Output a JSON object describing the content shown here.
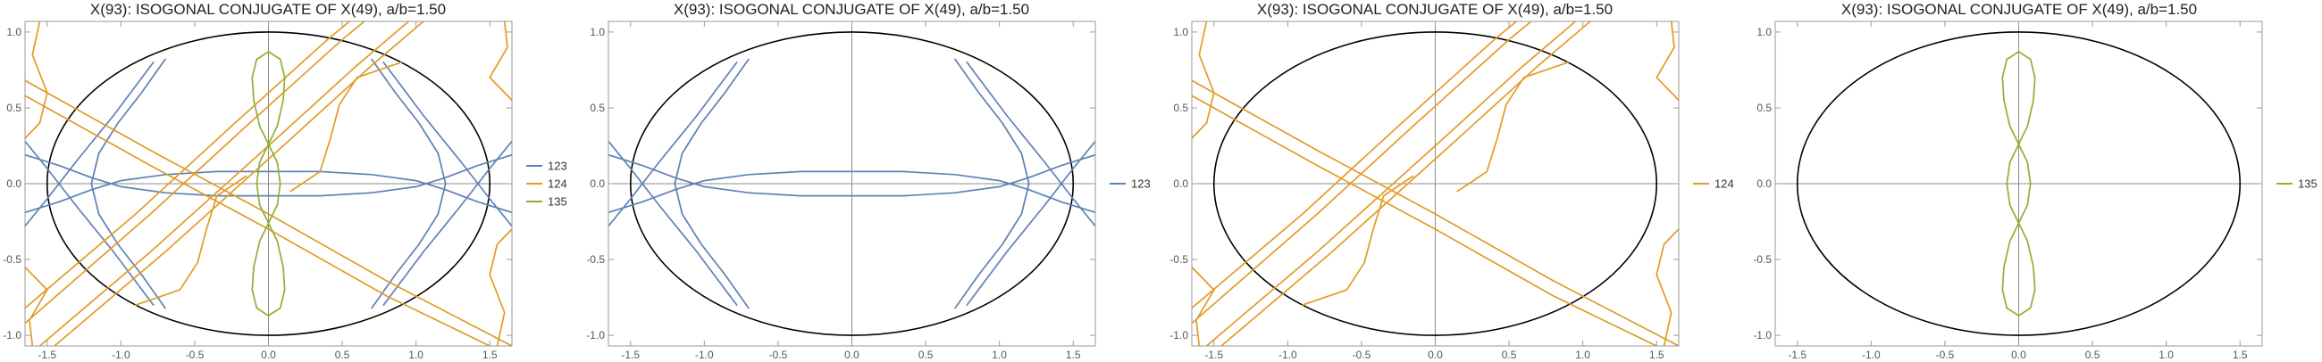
{
  "colors": {
    "ellipse": "#000000",
    "frame": "#9a9a9a",
    "axis": "#8c8c8c",
    "s123": "#5e81b5",
    "s124": "#e19c24",
    "s135": "#8fb032"
  },
  "chart_data": [
    {
      "type": "line",
      "title": "X(93): ISOGONAL CONJUGATE OF X(49), a/b=1.50",
      "xlim": [
        -1.65,
        1.65
      ],
      "ylim": [
        -1.07,
        1.07
      ],
      "xticks": [
        "-1.5",
        "-1.0",
        "-0.5",
        "0.0",
        "0.5",
        "1.0",
        "1.5"
      ],
      "yticks": [
        "-1.0",
        "-0.5",
        "0.0",
        "0.5",
        "1.0"
      ],
      "ellipse": {
        "a": 1.5,
        "b": 1.0
      },
      "legend": [
        "123",
        "124",
        "135"
      ],
      "series": [
        "123",
        "124",
        "135"
      ]
    },
    {
      "type": "line",
      "title": "X(93): ISOGONAL CONJUGATE OF X(49), a/b=1.50",
      "xlim": [
        -1.65,
        1.65
      ],
      "ylim": [
        -1.07,
        1.07
      ],
      "xticks": [
        "-1.5",
        "-1.0",
        "-0.5",
        "0.0",
        "0.5",
        "1.0",
        "1.5"
      ],
      "yticks": [
        "-1.0",
        "-0.5",
        "0.0",
        "0.5",
        "1.0"
      ],
      "ellipse": {
        "a": 1.5,
        "b": 1.0
      },
      "legend": [
        "123"
      ],
      "series": [
        "123"
      ]
    },
    {
      "type": "line",
      "title": "X(93): ISOGONAL CONJUGATE OF X(49), a/b=1.50",
      "xlim": [
        -1.65,
        1.65
      ],
      "ylim": [
        -1.07,
        1.07
      ],
      "xticks": [
        "-1.5",
        "-1.0",
        "-0.5",
        "0.0",
        "0.5",
        "1.0",
        "1.5"
      ],
      "yticks": [
        "-1.0",
        "-0.5",
        "0.0",
        "0.5",
        "1.0"
      ],
      "ellipse": {
        "a": 1.5,
        "b": 1.0
      },
      "legend": [
        "124"
      ],
      "series": [
        "124"
      ]
    },
    {
      "type": "line",
      "title": "X(93): ISOGONAL CONJUGATE OF X(49), a/b=1.50",
      "xlim": [
        -1.65,
        1.65
      ],
      "ylim": [
        -1.07,
        1.07
      ],
      "xticks": [
        "-1.5",
        "-1.0",
        "-0.5",
        "0.0",
        "0.5",
        "1.0",
        "1.5"
      ],
      "yticks": [
        "-1.0",
        "-0.5",
        "0.0",
        "0.5",
        "1.0"
      ],
      "ellipse": {
        "a": 1.5,
        "b": 1.0
      },
      "legend": [
        "135"
      ],
      "series": [
        "135"
      ]
    }
  ],
  "series_curves": {
    "123": [
      [
        [
          -1.65,
          0.19
        ],
        [
          -1.42,
          0.12
        ],
        [
          -1.2,
          0.04
        ],
        [
          -1.0,
          -0.02
        ],
        [
          -0.7,
          -0.06
        ],
        [
          -0.35,
          -0.08
        ],
        [
          0.0,
          -0.08
        ],
        [
          0.35,
          -0.08
        ],
        [
          0.7,
          -0.06
        ],
        [
          1.0,
          -0.02
        ],
        [
          1.2,
          0.04
        ],
        [
          1.42,
          0.12
        ],
        [
          1.65,
          0.19
        ]
      ],
      [
        [
          -1.65,
          -0.19
        ],
        [
          -1.42,
          -0.12
        ],
        [
          -1.2,
          -0.04
        ],
        [
          -1.0,
          0.02
        ],
        [
          -0.7,
          0.06
        ],
        [
          -0.35,
          0.08
        ],
        [
          0.0,
          0.08
        ],
        [
          0.35,
          0.08
        ],
        [
          0.7,
          0.06
        ],
        [
          1.0,
          0.02
        ],
        [
          1.2,
          -0.04
        ],
        [
          1.42,
          -0.12
        ],
        [
          1.65,
          -0.19
        ]
      ],
      [
        [
          -0.7,
          0.82
        ],
        [
          -0.86,
          0.6
        ],
        [
          -1.02,
          0.4
        ],
        [
          -1.15,
          0.2
        ],
        [
          -1.2,
          0.0
        ],
        [
          -1.15,
          -0.2
        ],
        [
          -1.02,
          -0.4
        ],
        [
          -0.86,
          -0.6
        ],
        [
          -0.7,
          -0.82
        ]
      ],
      [
        [
          0.7,
          0.82
        ],
        [
          0.86,
          0.6
        ],
        [
          1.02,
          0.4
        ],
        [
          1.15,
          0.2
        ],
        [
          1.2,
          0.0
        ],
        [
          1.15,
          -0.2
        ],
        [
          1.02,
          -0.4
        ],
        [
          0.86,
          -0.6
        ],
        [
          0.7,
          -0.82
        ]
      ],
      [
        [
          -0.78,
          0.8
        ],
        [
          -1.05,
          0.45
        ],
        [
          -1.3,
          0.15
        ],
        [
          -1.5,
          -0.1
        ],
        [
          -1.65,
          -0.28
        ]
      ],
      [
        [
          -0.78,
          -0.8
        ],
        [
          -1.05,
          -0.45
        ],
        [
          -1.3,
          -0.15
        ],
        [
          -1.5,
          0.1
        ],
        [
          -1.65,
          0.28
        ]
      ],
      [
        [
          0.78,
          0.8
        ],
        [
          1.05,
          0.45
        ],
        [
          1.3,
          0.15
        ],
        [
          1.5,
          -0.1
        ],
        [
          1.65,
          -0.28
        ]
      ],
      [
        [
          0.78,
          -0.8
        ],
        [
          1.05,
          -0.45
        ],
        [
          1.3,
          -0.15
        ],
        [
          1.5,
          0.1
        ],
        [
          1.65,
          0.28
        ]
      ]
    ],
    "124": [
      [
        [
          -1.65,
          0.68
        ],
        [
          -0.8,
          0.22
        ],
        [
          0.0,
          -0.2
        ],
        [
          0.8,
          -0.64
        ],
        [
          1.65,
          -1.07
        ]
      ],
      [
        [
          -1.65,
          0.58
        ],
        [
          -0.8,
          0.12
        ],
        [
          0.0,
          -0.3
        ],
        [
          0.8,
          -0.74
        ],
        [
          1.5,
          -1.07
        ]
      ],
      [
        [
          -1.55,
          -1.07
        ],
        [
          -0.8,
          -0.45
        ],
        [
          0.0,
          0.25
        ],
        [
          0.6,
          0.78
        ],
        [
          0.95,
          1.07
        ]
      ],
      [
        [
          -1.45,
          -1.07
        ],
        [
          -0.7,
          -0.45
        ],
        [
          0.1,
          0.25
        ],
        [
          0.7,
          0.78
        ],
        [
          1.05,
          1.07
        ]
      ],
      [
        [
          -1.65,
          -0.82
        ],
        [
          -0.9,
          -0.2
        ],
        [
          -0.25,
          0.38
        ],
        [
          0.4,
          0.95
        ],
        [
          0.55,
          1.07
        ]
      ],
      [
        [
          -1.65,
          -0.92
        ],
        [
          -0.8,
          -0.2
        ],
        [
          -0.15,
          0.38
        ],
        [
          0.5,
          0.95
        ],
        [
          0.65,
          1.07
        ]
      ],
      [
        [
          0.9,
          0.8
        ],
        [
          0.6,
          0.7
        ],
        [
          0.48,
          0.52
        ],
        [
          0.42,
          0.3
        ],
        [
          0.35,
          0.08
        ],
        [
          0.15,
          -0.05
        ]
      ],
      [
        [
          -0.9,
          -0.8
        ],
        [
          -0.6,
          -0.7
        ],
        [
          -0.48,
          -0.52
        ],
        [
          -0.42,
          -0.3
        ],
        [
          -0.35,
          -0.08
        ],
        [
          -0.15,
          0.05
        ]
      ],
      [
        [
          -1.55,
          1.07
        ],
        [
          -1.6,
          0.85
        ],
        [
          -1.5,
          0.6
        ],
        [
          -1.55,
          0.4
        ],
        [
          -1.65,
          0.3
        ]
      ],
      [
        [
          1.55,
          -1.07
        ],
        [
          1.6,
          -0.85
        ],
        [
          1.5,
          -0.6
        ],
        [
          1.55,
          -0.4
        ],
        [
          1.65,
          -0.3
        ]
      ],
      [
        [
          -1.65,
          -0.55
        ],
        [
          -1.5,
          -0.7
        ],
        [
          -1.62,
          -0.9
        ],
        [
          -1.6,
          -1.07
        ]
      ],
      [
        [
          1.65,
          0.55
        ],
        [
          1.5,
          0.7
        ],
        [
          1.62,
          0.9
        ],
        [
          1.6,
          1.07
        ]
      ]
    ],
    "135": [
      [
        [
          0.0,
          0.26
        ],
        [
          0.06,
          0.38
        ],
        [
          0.1,
          0.55
        ],
        [
          0.11,
          0.7
        ],
        [
          0.08,
          0.82
        ],
        [
          0.0,
          0.87
        ],
        [
          -0.08,
          0.82
        ],
        [
          -0.11,
          0.7
        ],
        [
          -0.1,
          0.55
        ],
        [
          -0.06,
          0.38
        ],
        [
          0.0,
          0.26
        ],
        [
          0.06,
          0.14
        ],
        [
          0.08,
          0.0
        ],
        [
          0.06,
          -0.14
        ],
        [
          0.0,
          -0.26
        ],
        [
          -0.06,
          -0.38
        ],
        [
          -0.1,
          -0.55
        ],
        [
          -0.11,
          -0.7
        ],
        [
          -0.08,
          -0.82
        ],
        [
          0.0,
          -0.87
        ],
        [
          0.08,
          -0.82
        ],
        [
          0.11,
          -0.7
        ],
        [
          0.1,
          -0.55
        ],
        [
          0.06,
          -0.38
        ],
        [
          0.0,
          -0.26
        ],
        [
          -0.06,
          -0.14
        ],
        [
          -0.08,
          0.0
        ],
        [
          -0.06,
          0.14
        ],
        [
          0.0,
          0.26
        ]
      ]
    ]
  }
}
